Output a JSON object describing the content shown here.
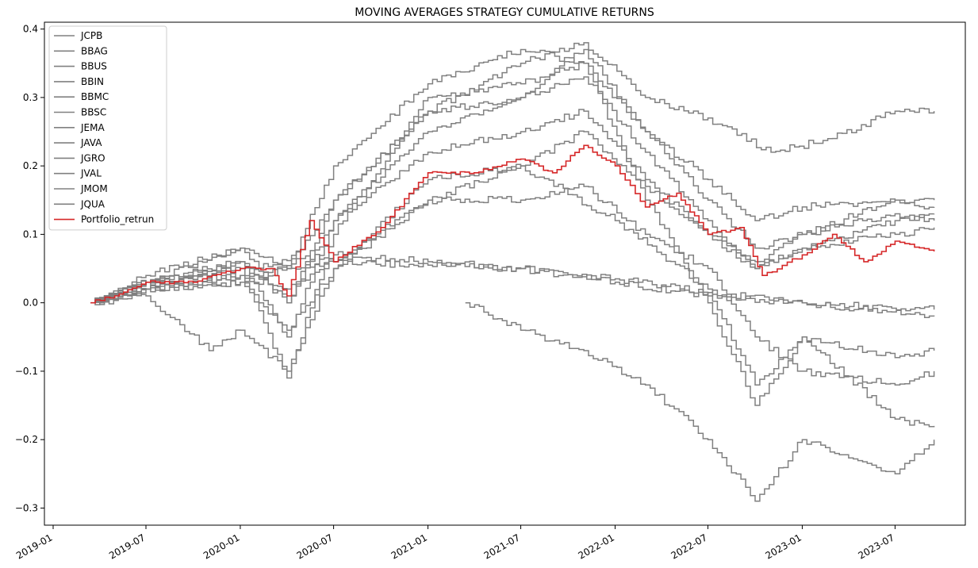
{
  "chart_data": {
    "type": "line",
    "title": "MOVING AVERAGES STRATEGY CUMULATIVE RETURNS",
    "xlabel": "",
    "ylabel": "",
    "x_ticks": [
      "2019-01",
      "2019-07",
      "2020-01",
      "2020-07",
      "2021-01",
      "2021-07",
      "2022-01",
      "2022-07",
      "2023-01",
      "2023-07"
    ],
    "y_ticks": [
      0.4,
      0.3,
      0.2,
      0.1,
      0.0,
      -0.1,
      -0.2,
      -0.3
    ],
    "y_tick_labels": [
      "0.4",
      "0.3",
      "0.2",
      "0.1",
      "0.0",
      "−0.1",
      "−0.2",
      "−0.3"
    ],
    "xlim": [
      "2018-12-15",
      "2023-11-15"
    ],
    "ylim": [
      -0.325,
      0.41
    ],
    "grid": false,
    "legend_position": "top-left",
    "series": [
      {
        "name": "JCPB",
        "color": "#808080",
        "points": [
          [
            "2019-03-15",
            0.0
          ],
          [
            "2019-07-01",
            0.02
          ],
          [
            "2020-01-01",
            0.04
          ],
          [
            "2020-07-01",
            0.06
          ],
          [
            "2021-01-01",
            0.055
          ],
          [
            "2021-07-01",
            0.05
          ],
          [
            "2022-01-01",
            0.03
          ],
          [
            "2022-07-01",
            0.01
          ],
          [
            "2023-01-01",
            0.0
          ],
          [
            "2023-09-15",
            -0.01
          ]
        ]
      },
      {
        "name": "BBAG",
        "color": "#808080",
        "points": [
          [
            "2019-03-15",
            0.0
          ],
          [
            "2019-07-01",
            0.03
          ],
          [
            "2020-01-01",
            0.05
          ],
          [
            "2020-07-01",
            0.07
          ],
          [
            "2021-01-01",
            0.06
          ],
          [
            "2021-07-01",
            0.05
          ],
          [
            "2022-01-01",
            0.035
          ],
          [
            "2022-07-01",
            0.015
          ],
          [
            "2023-01-01",
            0.0
          ],
          [
            "2023-09-15",
            -0.02
          ]
        ]
      },
      {
        "name": "BBUS",
        "color": "#808080",
        "points": [
          [
            "2019-03-15",
            0.0
          ],
          [
            "2019-07-01",
            0.03
          ],
          [
            "2020-01-01",
            0.08
          ],
          [
            "2020-04-01",
            0.0
          ],
          [
            "2020-07-01",
            0.15
          ],
          [
            "2021-01-01",
            0.28
          ],
          [
            "2021-07-01",
            0.35
          ],
          [
            "2021-11-01",
            0.38
          ],
          [
            "2022-03-01",
            0.3
          ],
          [
            "2022-07-01",
            0.27
          ],
          [
            "2022-11-01",
            0.22
          ],
          [
            "2023-03-01",
            0.24
          ],
          [
            "2023-07-01",
            0.28
          ],
          [
            "2023-09-15",
            0.28
          ]
        ]
      },
      {
        "name": "BBIN",
        "color": "#808080",
        "points": [
          [
            "2019-03-15",
            0.0
          ],
          [
            "2019-07-01",
            0.01
          ],
          [
            "2019-11-01",
            -0.07
          ],
          [
            "2020-01-01",
            -0.04
          ],
          [
            "2020-04-01",
            -0.1
          ],
          [
            "2020-07-01",
            0.05
          ],
          [
            "2021-01-01",
            0.18
          ],
          [
            "2021-07-01",
            0.2
          ],
          [
            "2022-01-01",
            0.12
          ],
          [
            "2022-07-01",
            0.02
          ],
          [
            "2022-10-01",
            -0.12
          ],
          [
            "2023-01-01",
            -0.05
          ],
          [
            "2023-07-01",
            -0.08
          ],
          [
            "2023-09-15",
            -0.07
          ]
        ]
      },
      {
        "name": "BBMC",
        "color": "#808080",
        "points": [
          [
            "2019-03-15",
            0.0
          ],
          [
            "2019-07-01",
            0.03
          ],
          [
            "2020-01-01",
            0.06
          ],
          [
            "2020-04-01",
            -0.05
          ],
          [
            "2020-07-01",
            0.12
          ],
          [
            "2021-01-01",
            0.25
          ],
          [
            "2021-07-01",
            0.3
          ],
          [
            "2021-11-01",
            0.33
          ],
          [
            "2022-03-01",
            0.22
          ],
          [
            "2022-07-01",
            0.12
          ],
          [
            "2022-10-01",
            0.05
          ],
          [
            "2023-01-01",
            0.08
          ],
          [
            "2023-07-01",
            0.12
          ],
          [
            "2023-09-15",
            0.13
          ]
        ]
      },
      {
        "name": "BBSC",
        "color": "#808080",
        "points": [
          [
            "2019-03-15",
            0.0
          ],
          [
            "2019-07-01",
            0.02
          ],
          [
            "2020-01-01",
            0.05
          ],
          [
            "2020-04-01",
            -0.11
          ],
          [
            "2020-07-01",
            0.1
          ],
          [
            "2021-01-01",
            0.3
          ],
          [
            "2021-07-01",
            0.32
          ],
          [
            "2021-11-01",
            0.35
          ],
          [
            "2022-03-01",
            0.15
          ],
          [
            "2022-07-01",
            0.0
          ],
          [
            "2022-10-01",
            -0.15
          ],
          [
            "2023-01-01",
            -0.05
          ],
          [
            "2023-07-01",
            -0.17
          ],
          [
            "2023-09-15",
            -0.18
          ]
        ]
      },
      {
        "name": "JEMA",
        "color": "#808080",
        "points": [
          [
            "2021-03-15",
            0.0
          ],
          [
            "2021-07-01",
            -0.04
          ],
          [
            "2021-11-01",
            -0.07
          ],
          [
            "2022-03-01",
            -0.12
          ],
          [
            "2022-07-01",
            -0.2
          ],
          [
            "2022-10-01",
            -0.29
          ],
          [
            "2023-01-01",
            -0.2
          ],
          [
            "2023-07-01",
            -0.25
          ],
          [
            "2023-09-15",
            -0.2
          ]
        ]
      },
      {
        "name": "JAVA",
        "color": "#808080",
        "points": [
          [
            "2019-03-15",
            0.0
          ],
          [
            "2019-07-01",
            0.03
          ],
          [
            "2020-01-01",
            0.04
          ],
          [
            "2020-04-01",
            0.02
          ],
          [
            "2020-07-01",
            0.06
          ],
          [
            "2021-01-01",
            0.15
          ],
          [
            "2021-07-01",
            0.2
          ],
          [
            "2021-11-01",
            0.25
          ],
          [
            "2022-03-01",
            0.17
          ],
          [
            "2022-07-01",
            0.1
          ],
          [
            "2022-10-01",
            0.06
          ],
          [
            "2023-01-01",
            0.1
          ],
          [
            "2023-07-01",
            0.13
          ],
          [
            "2023-09-15",
            0.12
          ]
        ]
      },
      {
        "name": "JGRO",
        "color": "#808080",
        "points": [
          [
            "2019-03-15",
            0.0
          ],
          [
            "2019-07-01",
            0.02
          ],
          [
            "2020-01-01",
            0.03
          ],
          [
            "2020-04-01",
            0.05
          ],
          [
            "2020-07-01",
            0.2
          ],
          [
            "2021-01-01",
            0.32
          ],
          [
            "2021-07-01",
            0.37
          ],
          [
            "2021-11-01",
            0.35
          ],
          [
            "2022-03-01",
            0.25
          ],
          [
            "2022-07-01",
            0.15
          ],
          [
            "2022-10-01",
            0.08
          ],
          [
            "2023-01-01",
            0.1
          ],
          [
            "2023-07-01",
            0.15
          ],
          [
            "2023-09-15",
            0.14
          ]
        ]
      },
      {
        "name": "JVAL",
        "color": "#808080",
        "points": [
          [
            "2019-03-15",
            0.0
          ],
          [
            "2019-07-01",
            0.02
          ],
          [
            "2020-01-01",
            0.03
          ],
          [
            "2020-04-01",
            -0.04
          ],
          [
            "2020-07-01",
            0.05
          ],
          [
            "2021-01-01",
            0.15
          ],
          [
            "2021-07-01",
            0.15
          ],
          [
            "2021-11-01",
            0.17
          ],
          [
            "2022-03-01",
            0.1
          ],
          [
            "2022-07-01",
            0.05
          ],
          [
            "2022-10-01",
            -0.05
          ],
          [
            "2023-01-01",
            -0.1
          ],
          [
            "2023-07-01",
            -0.12
          ],
          [
            "2023-09-15",
            -0.1
          ]
        ]
      },
      {
        "name": "JMOM",
        "color": "#808080",
        "points": [
          [
            "2019-03-15",
            0.0
          ],
          [
            "2019-07-01",
            0.04
          ],
          [
            "2020-01-01",
            0.08
          ],
          [
            "2020-04-01",
            0.05
          ],
          [
            "2020-07-01",
            0.15
          ],
          [
            "2021-01-01",
            0.28
          ],
          [
            "2021-07-01",
            0.3
          ],
          [
            "2021-11-01",
            0.37
          ],
          [
            "2022-03-01",
            0.25
          ],
          [
            "2022-07-01",
            0.18
          ],
          [
            "2022-10-01",
            0.12
          ],
          [
            "2023-01-01",
            0.14
          ],
          [
            "2023-07-01",
            0.15
          ],
          [
            "2023-09-15",
            0.15
          ]
        ]
      },
      {
        "name": "JQUA",
        "color": "#808080",
        "points": [
          [
            "2019-03-15",
            0.0
          ],
          [
            "2019-07-01",
            0.03
          ],
          [
            "2020-01-01",
            0.06
          ],
          [
            "2020-04-01",
            0.0
          ],
          [
            "2020-07-01",
            0.12
          ],
          [
            "2021-01-01",
            0.22
          ],
          [
            "2021-07-01",
            0.25
          ],
          [
            "2021-11-01",
            0.28
          ],
          [
            "2022-03-01",
            0.18
          ],
          [
            "2022-07-01",
            0.1
          ],
          [
            "2022-10-01",
            0.05
          ],
          [
            "2023-01-01",
            0.08
          ],
          [
            "2023-07-01",
            0.1
          ],
          [
            "2023-09-15",
            0.11
          ]
        ]
      },
      {
        "name": "Portfolio_retrun",
        "color": "#d62728",
        "points": [
          [
            "2019-03-15",
            0.0
          ],
          [
            "2019-05-01",
            0.01
          ],
          [
            "2019-07-01",
            0.03
          ],
          [
            "2019-10-01",
            0.03
          ],
          [
            "2020-01-01",
            0.05
          ],
          [
            "2020-03-01",
            0.05
          ],
          [
            "2020-04-01",
            0.01
          ],
          [
            "2020-05-15",
            0.12
          ],
          [
            "2020-07-01",
            0.06
          ],
          [
            "2020-10-01",
            0.11
          ],
          [
            "2021-01-01",
            0.19
          ],
          [
            "2021-04-01",
            0.19
          ],
          [
            "2021-07-01",
            0.21
          ],
          [
            "2021-09-01",
            0.19
          ],
          [
            "2021-11-01",
            0.23
          ],
          [
            "2022-01-01",
            0.2
          ],
          [
            "2022-03-01",
            0.14
          ],
          [
            "2022-05-01",
            0.16
          ],
          [
            "2022-07-01",
            0.1
          ],
          [
            "2022-09-01",
            0.11
          ],
          [
            "2022-10-15",
            0.04
          ],
          [
            "2023-01-01",
            0.07
          ],
          [
            "2023-03-01",
            0.1
          ],
          [
            "2023-05-01",
            0.06
          ],
          [
            "2023-07-01",
            0.09
          ],
          [
            "2023-09-15",
            0.075
          ]
        ]
      }
    ]
  }
}
